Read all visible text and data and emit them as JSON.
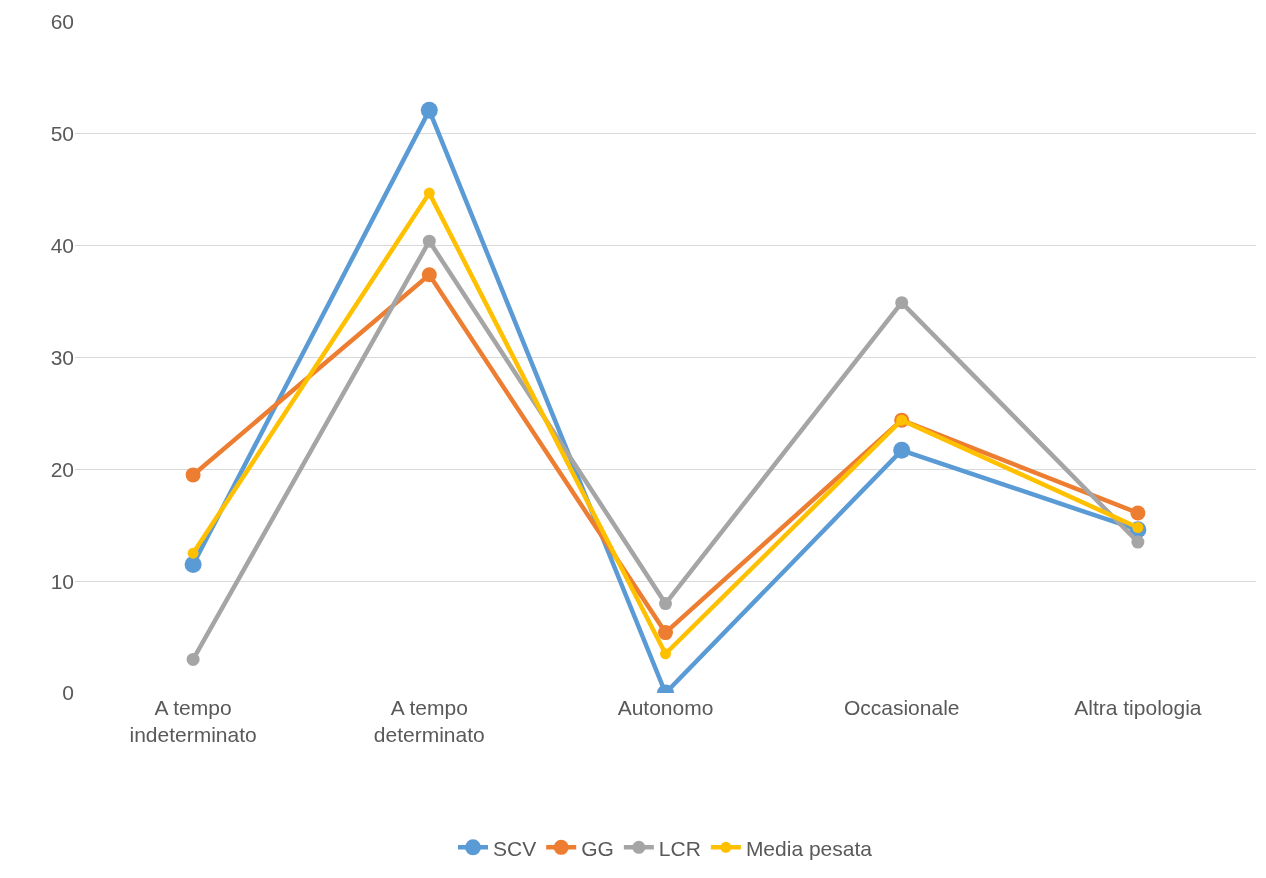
{
  "chart_data": {
    "type": "line",
    "categories": [
      "A tempo indeterminato",
      "A tempo determinato",
      "Autonomo",
      "Occasionale",
      "Altra tipologia"
    ],
    "series": [
      {
        "name": "SCV",
        "color": "#5b9bd5",
        "values": [
          11.5,
          52.1,
          0,
          21.7,
          14.6
        ]
      },
      {
        "name": "GG",
        "color": "#ed7d31",
        "values": [
          19.5,
          37.4,
          5.4,
          24.4,
          16.1
        ]
      },
      {
        "name": "LCR",
        "color": "#a5a5a5",
        "values": [
          3.0,
          40.4,
          8.0,
          34.9,
          13.5
        ]
      },
      {
        "name": "Media pesata",
        "color": "#ffc000",
        "values": [
          12.5,
          44.7,
          3.5,
          24.4,
          14.8
        ]
      }
    ],
    "ylim": [
      0,
      60
    ],
    "yticks": [
      0,
      10,
      20,
      30,
      40,
      50,
      60
    ],
    "grid": "y",
    "legend": "bottom",
    "marker": "circle",
    "line_style": "solid"
  }
}
